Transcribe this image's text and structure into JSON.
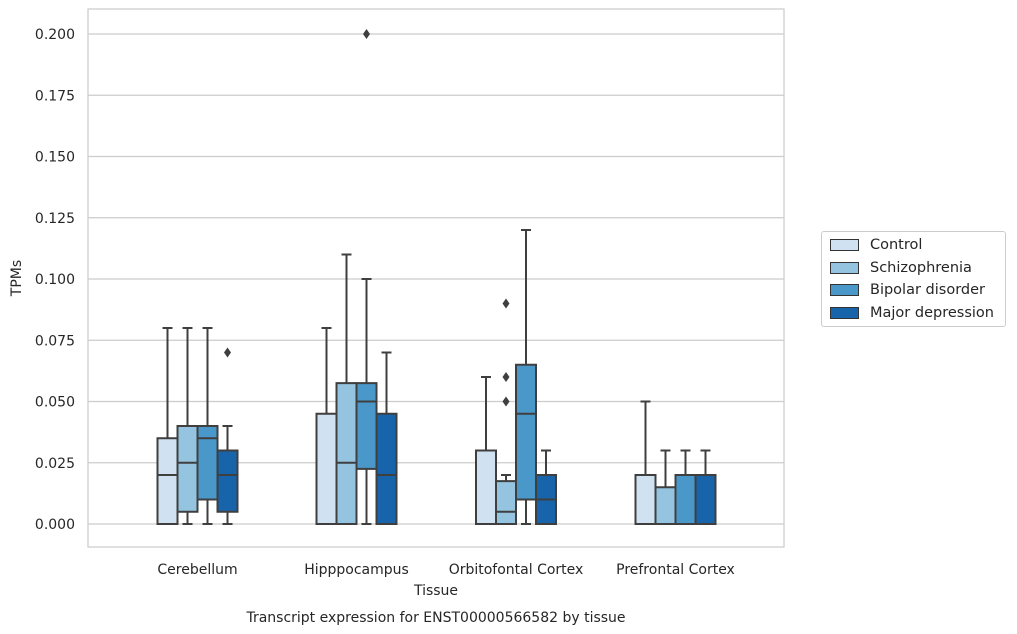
{
  "chart_data": {
    "type": "box",
    "title": "Transcript expression for ENST00000566582 by tissue",
    "xlabel": "Tissue",
    "ylabel": "TPMs",
    "ylim": [
      -0.01,
      0.21
    ],
    "yticks": [
      "0.000",
      "0.025",
      "0.050",
      "0.075",
      "0.100",
      "0.125",
      "0.150",
      "0.175",
      "0.200"
    ],
    "grid": "horizontal",
    "legend_position": "right",
    "categories": [
      "Cerebellum",
      "Hipppocampus",
      "Orbitofontal Cortex",
      "Prefrontal Cortex"
    ],
    "series": [
      {
        "name": "Control",
        "color": "#d0e1f2",
        "boxes": [
          {
            "whisker_low": 0.0,
            "q1": 0.0,
            "median": 0.02,
            "q3": 0.035,
            "whisker_high": 0.08,
            "outliers": []
          },
          {
            "whisker_low": 0.0,
            "q1": 0.0,
            "median": 0.0,
            "q3": 0.045,
            "whisker_high": 0.08,
            "outliers": []
          },
          {
            "whisker_low": 0.0,
            "q1": 0.0,
            "median": 0.0,
            "q3": 0.03,
            "whisker_high": 0.06,
            "outliers": []
          },
          {
            "whisker_low": 0.0,
            "q1": 0.0,
            "median": 0.0,
            "q3": 0.02,
            "whisker_high": 0.05,
            "outliers": []
          }
        ]
      },
      {
        "name": "Schizophrenia",
        "color": "#94c4df",
        "boxes": [
          {
            "whisker_low": 0.0,
            "q1": 0.005,
            "median": 0.025,
            "q3": 0.04,
            "whisker_high": 0.08,
            "outliers": []
          },
          {
            "whisker_low": 0.0,
            "q1": 0.0,
            "median": 0.025,
            "q3": 0.0575,
            "whisker_high": 0.11,
            "outliers": []
          },
          {
            "whisker_low": 0.0,
            "q1": 0.0,
            "median": 0.005,
            "q3": 0.0175,
            "whisker_high": 0.02,
            "outliers": [
              0.05,
              0.06,
              0.09
            ]
          },
          {
            "whisker_low": 0.0,
            "q1": 0.0,
            "median": 0.0,
            "q3": 0.015,
            "whisker_high": 0.03,
            "outliers": []
          }
        ]
      },
      {
        "name": "Bipolar disorder",
        "color": "#4a98c9",
        "boxes": [
          {
            "whisker_low": 0.0,
            "q1": 0.01,
            "median": 0.035,
            "q3": 0.04,
            "whisker_high": 0.08,
            "outliers": []
          },
          {
            "whisker_low": 0.0,
            "q1": 0.0225,
            "median": 0.05,
            "q3": 0.0575,
            "whisker_high": 0.1,
            "outliers": [
              0.2
            ]
          },
          {
            "whisker_low": 0.0,
            "q1": 0.01,
            "median": 0.045,
            "q3": 0.065,
            "whisker_high": 0.12,
            "outliers": []
          },
          {
            "whisker_low": 0.0,
            "q1": 0.0,
            "median": 0.0,
            "q3": 0.02,
            "whisker_high": 0.03,
            "outliers": []
          }
        ]
      },
      {
        "name": "Major depression",
        "color": "#1764ab",
        "boxes": [
          {
            "whisker_low": 0.0,
            "q1": 0.005,
            "median": 0.02,
            "q3": 0.03,
            "whisker_high": 0.04,
            "outliers": [
              0.07
            ]
          },
          {
            "whisker_low": 0.0,
            "q1": 0.0,
            "median": 0.02,
            "q3": 0.045,
            "whisker_high": 0.07,
            "outliers": []
          },
          {
            "whisker_low": 0.0,
            "q1": 0.0,
            "median": 0.01,
            "q3": 0.02,
            "whisker_high": 0.03,
            "outliers": []
          },
          {
            "whisker_low": 0.0,
            "q1": 0.0,
            "median": 0.0,
            "q3": 0.02,
            "whisker_high": 0.03,
            "outliers": []
          }
        ]
      }
    ]
  }
}
